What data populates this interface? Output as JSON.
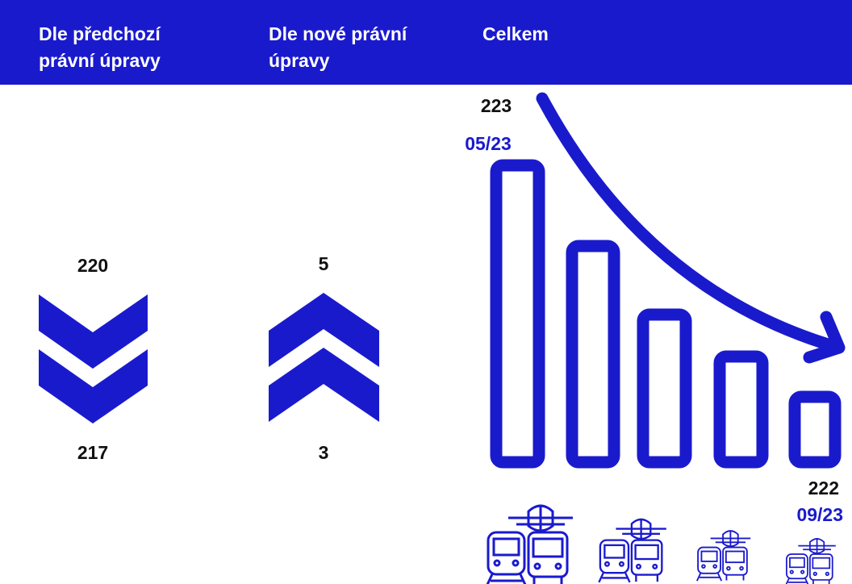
{
  "header": {
    "columns": [
      "Dle předchozí právní úpravy",
      "Dle nové právní úpravy",
      "Celkem"
    ]
  },
  "previous": {
    "before": 220,
    "after": 217
  },
  "new": {
    "before": 5,
    "after": 3
  },
  "total": {
    "start": {
      "value": 223,
      "date": "05/23"
    },
    "end": {
      "value": 222,
      "date": "09/23"
    }
  }
}
